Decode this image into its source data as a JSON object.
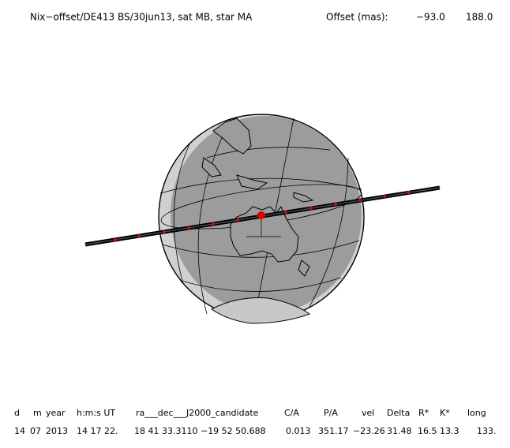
{
  "header": {
    "title": "Nix−offset/DE413 BS/30jun13, sat MB, star MA",
    "offset_label": "Offset (mas):",
    "offset_values": [
      "−93.0",
      "188.0"
    ]
  },
  "table": {
    "headers": [
      "d",
      "m",
      "year",
      "h:m:s UT",
      "ra___dec___J2000_candidate",
      "C/A",
      "P/A",
      "vel",
      "Delta",
      "R*",
      "K*",
      "long"
    ],
    "rows": [
      [
        "14",
        "07",
        "2013",
        "14 17 22.",
        "18 41 33.3110 −19 52 50.688",
        "0.013",
        "351.17",
        "−23.26",
        "31.48",
        "16.5",
        "13.3",
        "133."
      ]
    ]
  }
}
